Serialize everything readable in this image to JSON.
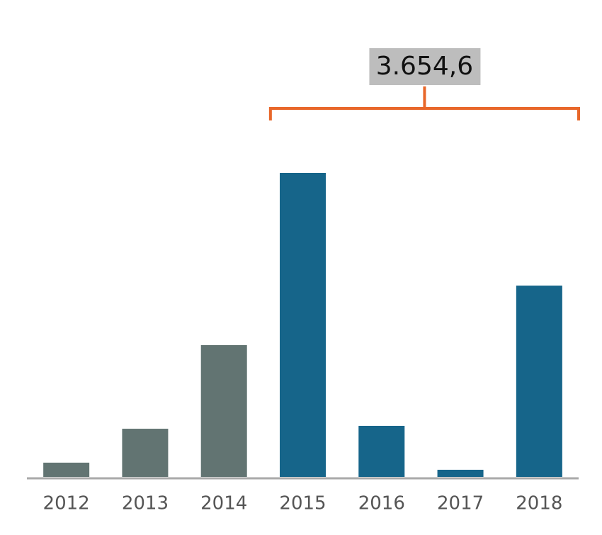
{
  "chart_data": {
    "type": "bar",
    "categories": [
      "2012",
      "2013",
      "2014",
      "2015",
      "2016",
      "2017",
      "2018"
    ],
    "values": [
      94,
      318,
      870,
      2007,
      337,
      47,
      1263
    ],
    "colors": [
      "#627472",
      "#627472",
      "#627472",
      "#16658a",
      "#16658a",
      "#16658a",
      "#16658a"
    ],
    "annotation": {
      "text": "3.654,6",
      "span": [
        "2015",
        "2018"
      ],
      "color": "#e8672a"
    }
  }
}
